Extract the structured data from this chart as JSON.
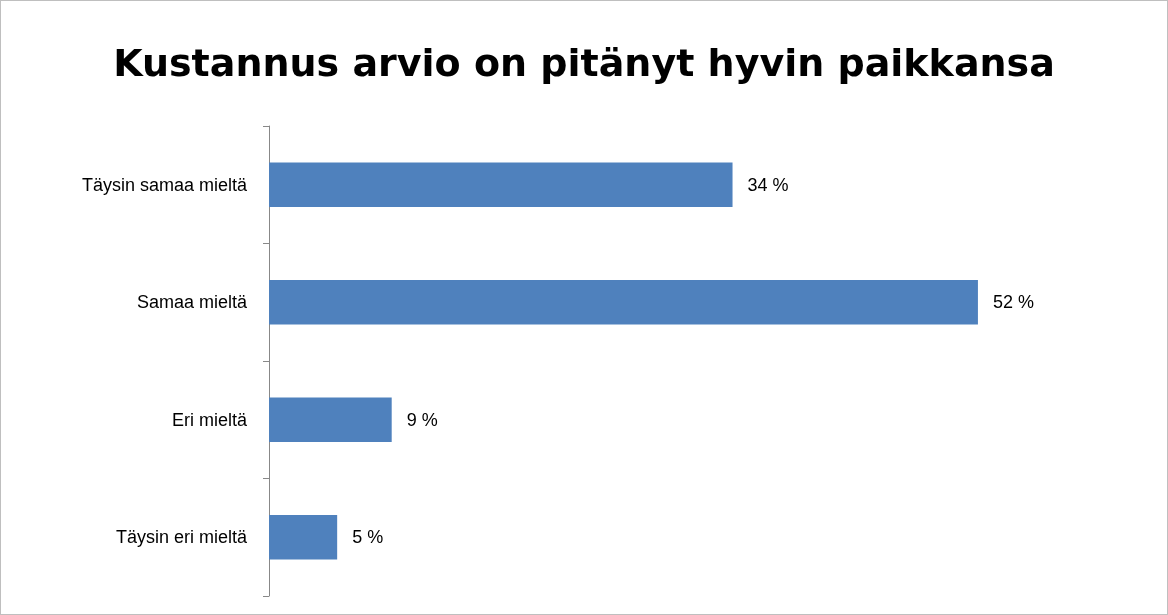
{
  "chart_data": {
    "type": "bar",
    "orientation": "horizontal",
    "title": "Kustannus arvio on pitänyt hyvin paikkansa",
    "categories": [
      "Täysin samaa mieltä",
      "Samaa mieltä",
      "Eri mieltä",
      "Täysin eri mieltä"
    ],
    "values": [
      34,
      52,
      9,
      5
    ],
    "value_labels": [
      "34 %",
      "52 %",
      "9 %",
      "5 %"
    ],
    "color": "#4f81bd"
  }
}
